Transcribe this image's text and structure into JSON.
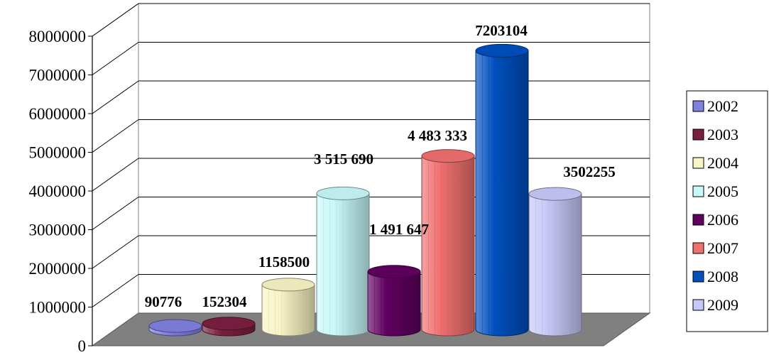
{
  "chart_data": {
    "type": "bar",
    "categories": [
      "2002",
      "2003",
      "2004",
      "2005",
      "2006",
      "2007",
      "2008",
      "2009"
    ],
    "values": [
      90776,
      152304,
      1158500,
      3515690,
      1491647,
      4483333,
      7203104,
      3502255
    ],
    "data_labels": [
      "90776",
      "152304",
      "1158500",
      "3 515 690",
      "1 491 647",
      "4 483 333",
      "7203104",
      "3502255"
    ],
    "y_ticks": [
      "0",
      "1000000",
      "2000000",
      "3000000",
      "4000000",
      "5000000",
      "6000000",
      "7000000",
      "8000000"
    ],
    "ylim": [
      0,
      8000000
    ],
    "grid": true,
    "legend_position": "right",
    "colors": [
      "#8080e0",
      "#7b1f3f",
      "#f8f4c4",
      "#c8f8f8",
      "#600060",
      "#f07070",
      "#0050c0",
      "#c8c8f8"
    ],
    "title": "",
    "xlabel": "",
    "ylabel": ""
  }
}
